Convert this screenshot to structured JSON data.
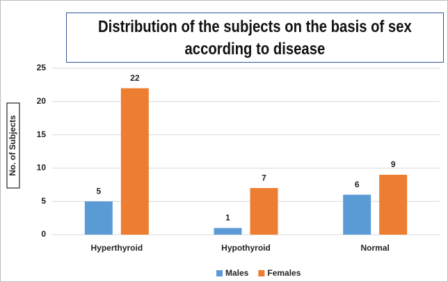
{
  "chart_data": {
    "type": "bar",
    "title": "Distribution of the subjects on the basis of sex according to disease",
    "ylabel": "No. of Subjects",
    "categories": [
      "Hyperthyroid",
      "Hypothyroid",
      "Normal"
    ],
    "series": [
      {
        "name": "Males",
        "color": "#5b9bd5",
        "values": [
          5,
          1,
          6
        ]
      },
      {
        "name": "Females",
        "color": "#ed7d31",
        "values": [
          22,
          7,
          9
        ]
      }
    ],
    "ylim": [
      0,
      25
    ],
    "yticks": [
      0,
      5,
      10,
      15,
      20,
      25
    ],
    "grid": true,
    "legend": "bottom"
  }
}
